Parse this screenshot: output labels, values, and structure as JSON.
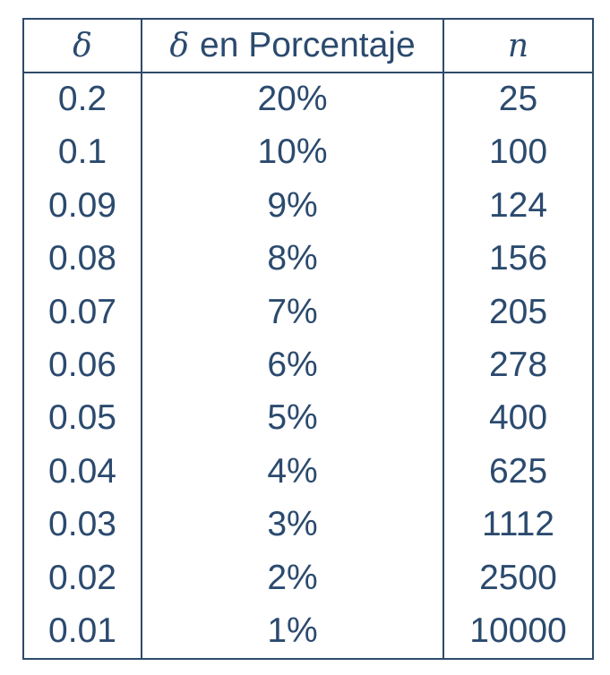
{
  "table": {
    "headers": {
      "col1_symbol": "δ",
      "col2_symbol": "δ",
      "col2_text": "en Porcentaje",
      "col3_symbol": "n"
    },
    "rows": [
      {
        "delta": "0.2",
        "percent": "20%",
        "n": "25"
      },
      {
        "delta": "0.1",
        "percent": "10%",
        "n": "100"
      },
      {
        "delta": "0.09",
        "percent": "9%",
        "n": "124"
      },
      {
        "delta": "0.08",
        "percent": "8%",
        "n": "156"
      },
      {
        "delta": "0.07",
        "percent": "7%",
        "n": "205"
      },
      {
        "delta": "0.06",
        "percent": "6%",
        "n": "278"
      },
      {
        "delta": "0.05",
        "percent": "5%",
        "n": "400"
      },
      {
        "delta": "0.04",
        "percent": "4%",
        "n": "625"
      },
      {
        "delta": "0.03",
        "percent": "3%",
        "n": "1112"
      },
      {
        "delta": "0.02",
        "percent": "2%",
        "n": "2500"
      },
      {
        "delta": "0.01",
        "percent": "1%",
        "n": "10000"
      }
    ]
  }
}
